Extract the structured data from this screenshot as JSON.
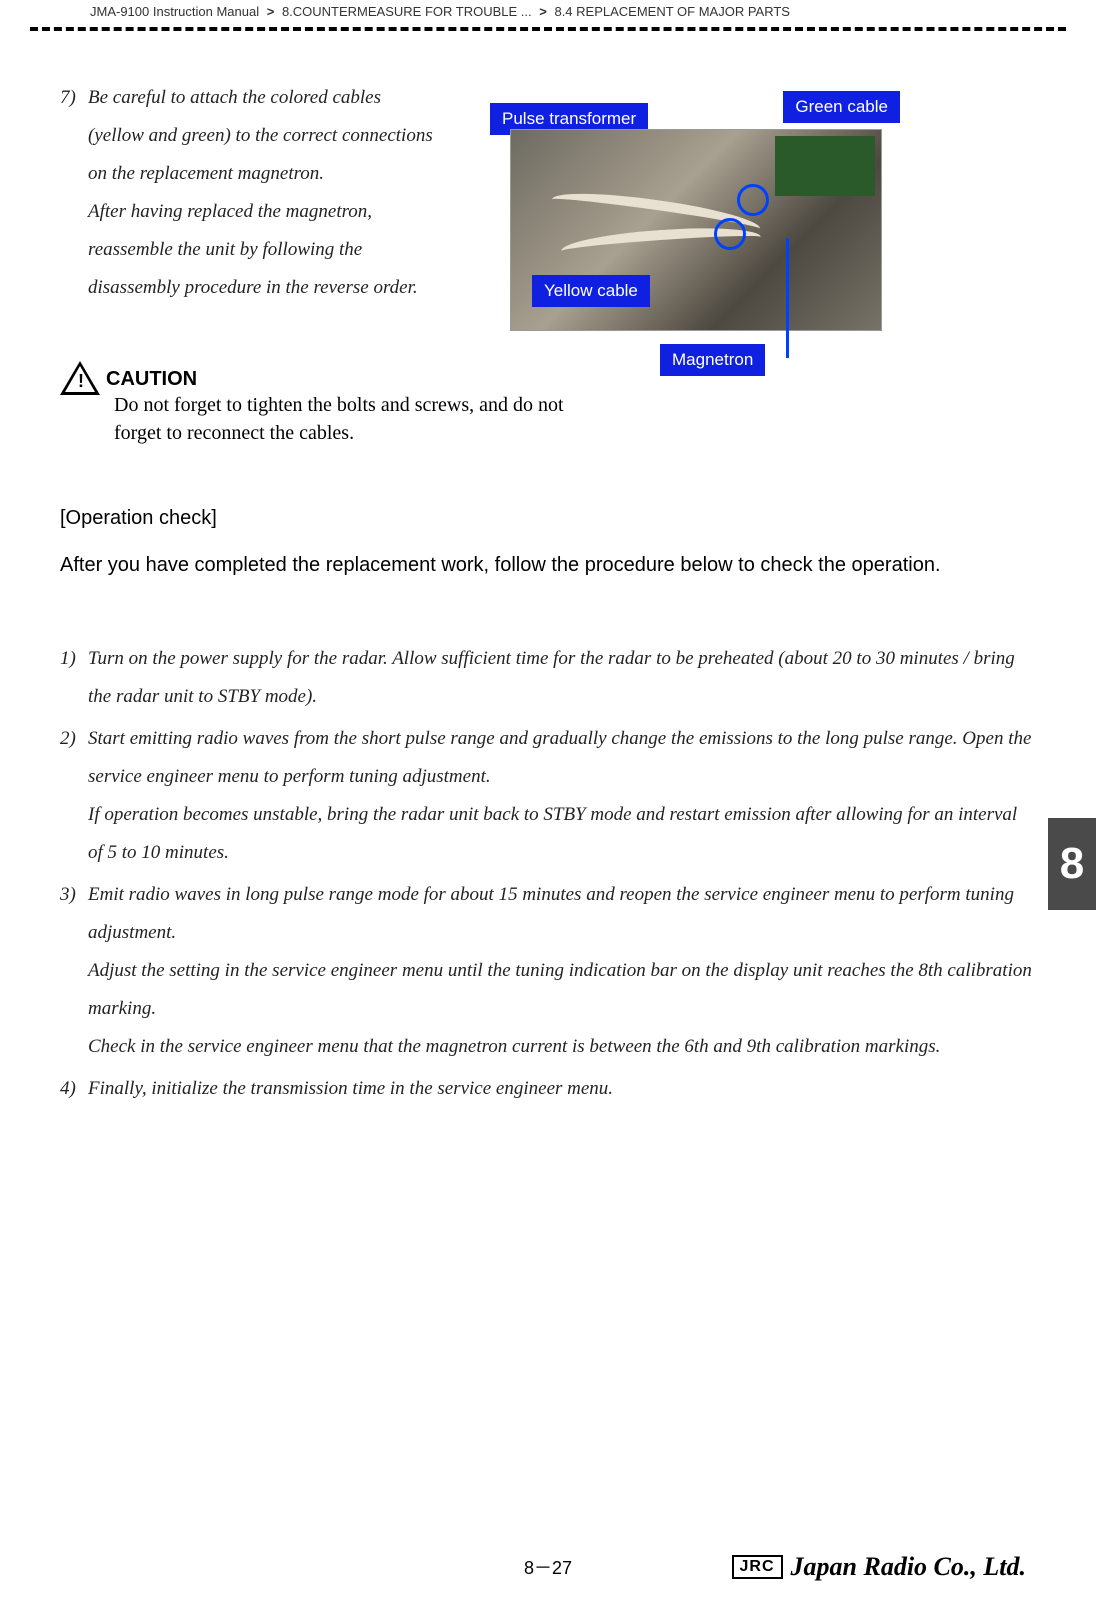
{
  "breadcrumb": {
    "manual": "JMA-9100 Instruction Manual",
    "chapter": "8.COUNTERMEASURE FOR TROUBLE ...",
    "section": "8.4  REPLACEMENT OF MAJOR PARTS",
    "separator": ">"
  },
  "step7": {
    "num": "7)",
    "p1": "Be careful to attach the colored cables (yellow and green) to the correct connections on the replacement magnetron.",
    "p2": "After having replaced the magnetron, reassemble the unit by following the disassembly procedure in the reverse order."
  },
  "figure_labels": {
    "pulse": "Pulse transformer",
    "green": "Green cable",
    "yellow": "Yellow cable",
    "magnetron": "Magnetron",
    "label_bg_color": "#1020e0",
    "label_text_color": "#ffffff"
  },
  "caution": {
    "title": "CAUTION",
    "text": "Do not forget to tighten the bolts and screws, and do not forget to reconnect the cables."
  },
  "operation_check": {
    "heading": "[Operation check]",
    "desc": "After you have completed the replacement work, follow the procedure below to check the operation."
  },
  "steps": [
    {
      "num": "1)",
      "paragraphs": [
        "Turn on the power supply for the radar. Allow sufficient time for the radar to be preheated (about 20 to 30 minutes / bring the radar unit to STBY mode)."
      ]
    },
    {
      "num": "2)",
      "paragraphs": [
        "Start emitting radio waves from the short pulse range and gradually change the emissions to the long pulse range. Open the service engineer menu to perform tuning adjustment.",
        "If operation becomes unstable, bring the radar unit back to STBY mode and restart emission after allowing for an interval of 5 to 10 minutes."
      ]
    },
    {
      "num": "3)",
      "paragraphs": [
        "Emit radio waves in long pulse range mode for about 15 minutes and reopen the service engineer menu to perform tuning adjustment.",
        "Adjust the setting in the service engineer menu until the tuning indication bar on the display unit reaches the 8th calibration marking.",
        "Check in the service engineer menu that the magnetron current is between the 6th and 9th calibration markings."
      ]
    },
    {
      "num": "4)",
      "paragraphs": [
        "Finally, initialize the transmission time in the service engineer menu."
      ]
    }
  ],
  "side_tab": "8",
  "footer": {
    "page_num": "8－27",
    "jrc": "JRC",
    "company": "Japan Radio Co., Ltd."
  },
  "colors": {
    "text": "#222222",
    "tab_bg": "#4a4a4a",
    "dash": "#000000"
  }
}
